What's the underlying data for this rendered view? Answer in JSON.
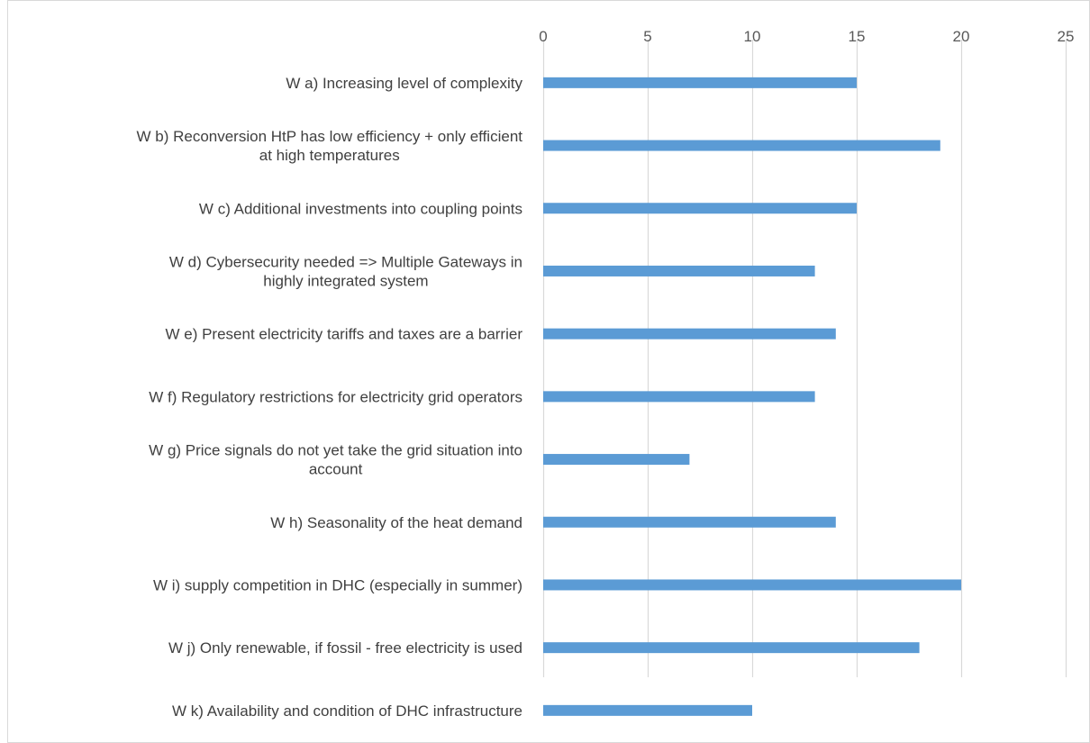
{
  "chart_data": {
    "type": "bar",
    "orientation": "horizontal",
    "categories": [
      [
        "W a) Increasing level of complexity"
      ],
      [
        "W b) Reconversion HtP has low efficiency + only efficient",
        "at high temperatures"
      ],
      [
        "W c) Additional investments into coupling points"
      ],
      [
        "W d) Cybersecurity needed => Multiple Gateways in",
        "highly integrated system"
      ],
      [
        "W e) Present electricity tariffs and taxes are a barrier"
      ],
      [
        "W f) Regulatory restrictions for electricity grid operators"
      ],
      [
        "W g) Price signals do not yet take the grid situation into",
        "account"
      ],
      [
        "W h) Seasonality of the heat demand"
      ],
      [
        "W i) supply competition in DHC (especially in summer)"
      ],
      [
        "W j) Only renewable, if fossil - free electricity is used"
      ],
      [
        "W k) Availability and condition of DHC infrastructure"
      ]
    ],
    "values": [
      15,
      19,
      15,
      13,
      14,
      13,
      7,
      14,
      20,
      18,
      10
    ],
    "xlim": [
      0,
      25
    ],
    "xticks": [
      "0",
      "5",
      "10",
      "15",
      "20",
      "25"
    ],
    "xaxis_position": "top",
    "grid": true,
    "colors": {
      "bar": "#5B9BD5",
      "grid": "#D9D9D9",
      "border": "#D9D9D9"
    }
  }
}
